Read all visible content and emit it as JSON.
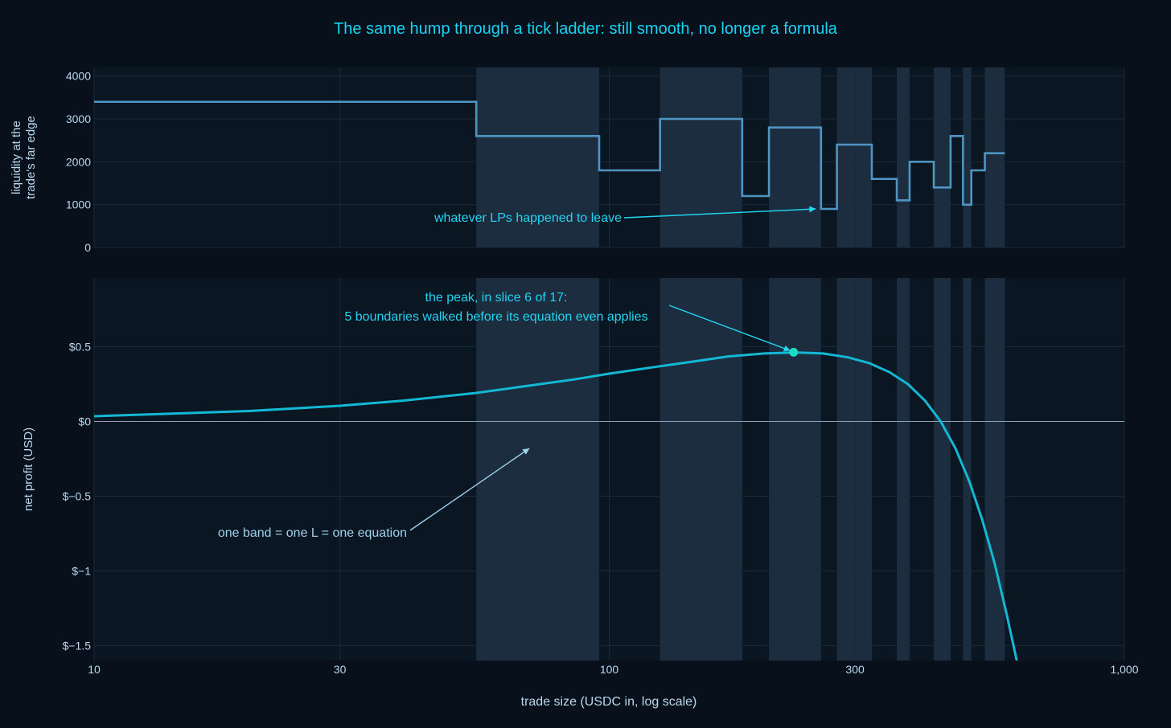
{
  "chart_data": {
    "title": "The same hump through a tick ladder: still smooth, no longer a formula",
    "xlabel": "trade size (USDC in, log scale)",
    "x_scale": "log",
    "x_range": [
      10,
      1000
    ],
    "x_ticks": [
      {
        "value": 10,
        "label": "10"
      },
      {
        "value": 30,
        "label": "30"
      },
      {
        "value": 100,
        "label": "100"
      },
      {
        "value": 300,
        "label": "300"
      },
      {
        "value": 1000,
        "label": "1,000"
      }
    ],
    "bands": [
      [
        55.2,
        95.6
      ],
      [
        125.5,
        181.2
      ],
      [
        204.2,
        257.7
      ],
      [
        276.7,
        323.4
      ],
      [
        361.6,
        382.9
      ],
      [
        426.6,
        459.9
      ],
      [
        486.1,
        504.6
      ],
      [
        536.0,
        586.0
      ]
    ],
    "colors": {
      "background": "#07101b",
      "plot_bg": "#0a1622",
      "band": "#1b2d3f",
      "grid": "#1b2a38",
      "liquidity_line": "#4e95c4",
      "profit_line": "#12b8d4",
      "peak_marker": "#1bdcc0",
      "title": "#19d3f2",
      "annotation_cyan": "#22d4f0",
      "annotation_blue": "#9fd0ec",
      "tick_text": "#b9d8ee",
      "zero_line": "#8aa3b8"
    },
    "panels": [
      {
        "id": "liquidity",
        "type": "line",
        "line_shape": "step",
        "ylabel": [
          "liquidity at the",
          "trade's far edge"
        ],
        "y_range": [
          0,
          4200
        ],
        "y_ticks": [
          {
            "value": 0,
            "label": "0"
          },
          {
            "value": 1000,
            "label": "1000"
          },
          {
            "value": 2000,
            "label": "2000"
          },
          {
            "value": 3000,
            "label": "3000"
          },
          {
            "value": 4000,
            "label": "4000"
          }
        ],
        "series": [
          {
            "x": [
              10,
              55.2,
              95.6,
              125.5,
              181.2,
              204.2,
              257.7,
              276.7,
              323.4,
              361.6,
              382.9,
              426.6,
              459.9,
              486.1,
              504.6,
              536.0,
              586.0
            ],
            "y": [
              3400,
              2600,
              1800,
              3000,
              1200,
              2800,
              900,
              2400,
              1600,
              1100,
              2000,
              1400,
              2600,
              1000,
              1800,
              2200,
              2200
            ]
          }
        ],
        "annotations": [
          {
            "text": "whatever LPs happened to leave",
            "x": 250,
            "y": 900
          }
        ]
      },
      {
        "id": "profit",
        "type": "line",
        "ylabel": [
          "net profit (USD)"
        ],
        "y_range": [
          -1.6,
          0.96
        ],
        "zero_line": true,
        "y_ticks": [
          {
            "value": -1.5,
            "label": "$−1.5"
          },
          {
            "value": -1,
            "label": "$−1"
          },
          {
            "value": -0.5,
            "label": "$−0.5"
          },
          {
            "value": 0,
            "label": "$0"
          },
          {
            "value": 0.5,
            "label": "$0.5"
          }
        ],
        "series": [
          {
            "x": [
              10,
              15,
              20,
              30,
              40,
              55,
              70,
              85,
              100,
              120,
              145,
              170,
              200,
              230,
              260,
              290,
              320,
              350,
              380,
              410,
              440,
              470,
              500,
              530,
              560,
              590,
              620
            ],
            "y": [
              0.035,
              0.055,
              0.07,
              0.105,
              0.14,
              0.19,
              0.24,
              0.28,
              0.32,
              0.36,
              0.4,
              0.435,
              0.455,
              0.462,
              0.455,
              0.43,
              0.39,
              0.33,
              0.25,
              0.14,
              0.0,
              -0.18,
              -0.4,
              -0.66,
              -0.95,
              -1.28,
              -1.62
            ]
          }
        ],
        "peak": {
          "x": 228,
          "y": 0.463
        },
        "annotations": [
          {
            "text": [
              "the peak, in slice 6 of 17:",
              "5 boundaries walked before its equation even applies"
            ],
            "x": 228,
            "y": 0.463
          },
          {
            "text": "one band = one L = one equation",
            "x": 70,
            "y": -0.18
          }
        ]
      }
    ]
  }
}
